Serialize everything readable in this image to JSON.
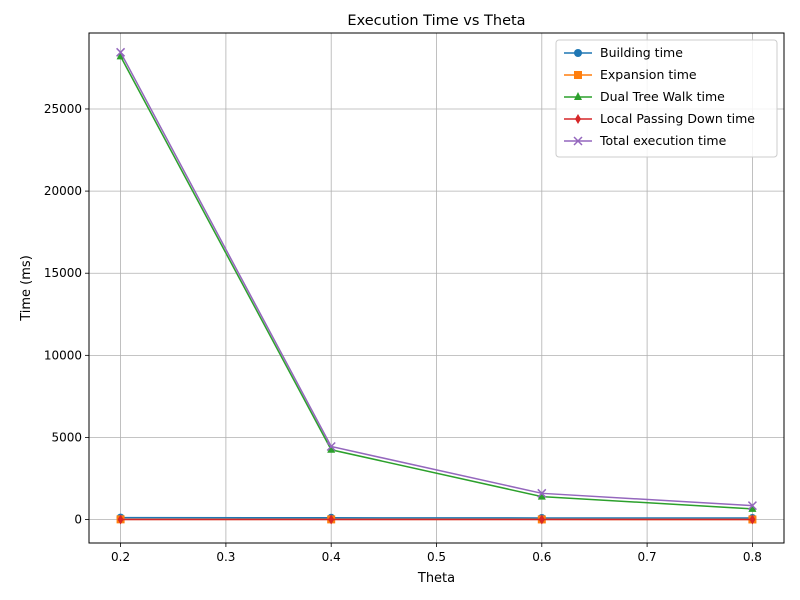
{
  "chart_data": {
    "type": "line",
    "title": "Execution Time vs Theta",
    "xlabel": "Theta",
    "ylabel": "Time (ms)",
    "x": [
      0.2,
      0.4,
      0.6,
      0.8
    ],
    "xlim": [
      0.17,
      0.83
    ],
    "ylim": [
      -1425,
      29625
    ],
    "xticks": [
      0.2,
      0.3,
      0.4,
      0.5,
      0.6,
      0.7,
      0.8
    ],
    "xtick_labels": [
      "0.2",
      "0.3",
      "0.4",
      "0.5",
      "0.6",
      "0.7",
      "0.8"
    ],
    "yticks": [
      0,
      5000,
      10000,
      15000,
      20000,
      25000
    ],
    "ytick_labels": [
      "0",
      "5000",
      "10000",
      "15000",
      "20000",
      "25000"
    ],
    "grid": true,
    "legend_position": "upper right",
    "series": [
      {
        "name": "Building time",
        "color": "#1f77b4",
        "marker": "circle",
        "values": [
          120,
          110,
          100,
          95
        ]
      },
      {
        "name": "Expansion time",
        "color": "#ff7f0e",
        "marker": "square",
        "values": [
          15,
          12,
          10,
          8
        ]
      },
      {
        "name": "Dual Tree Walk time",
        "color": "#2ca02c",
        "marker": "triangle",
        "values": [
          28200,
          4250,
          1400,
          650
        ]
      },
      {
        "name": "Local Passing Down time",
        "color": "#d62728",
        "marker": "diamond",
        "values": [
          5,
          5,
          4,
          4
        ]
      },
      {
        "name": "Total execution time",
        "color": "#9467bd",
        "marker": "x",
        "values": [
          28450,
          4450,
          1600,
          850
        ]
      }
    ]
  }
}
